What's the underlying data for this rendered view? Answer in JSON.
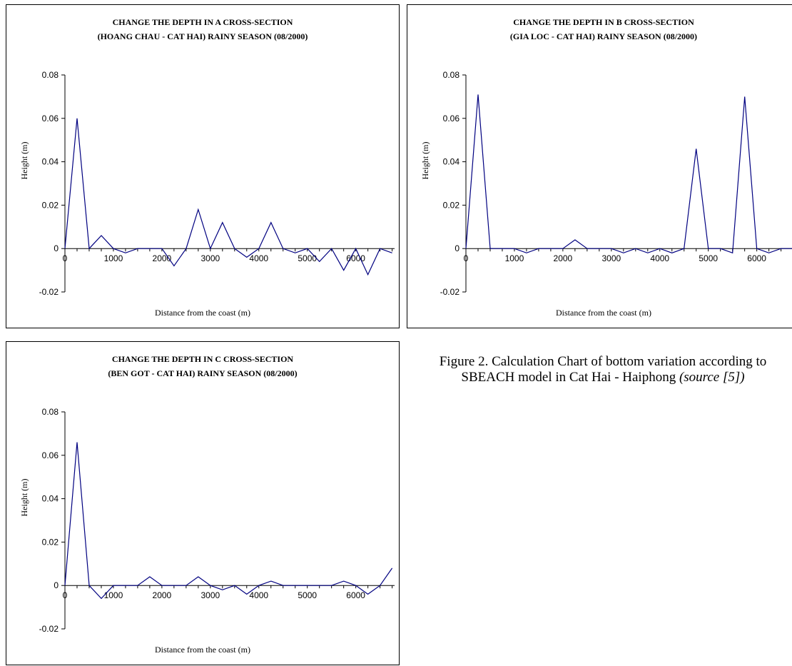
{
  "caption": {
    "text": "Figure 2. Calculation Chart of bottom variation according to SBEACH model in Cat Hai - Haiphong ",
    "source": "(source [5])"
  },
  "chart_data": [
    {
      "id": "a",
      "type": "line",
      "title_line1": "CHANGE THE DEPTH IN A CROSS-SECTION",
      "title_line2": "(HOANG CHAU - CAT HAI) RAINY SEASON (08/2000)",
      "xlabel": "Distance from the coast (m)",
      "ylabel": "Height (m)",
      "ylim": [
        -0.02,
        0.08
      ],
      "yticks": [
        -0.02,
        0,
        0.02,
        0.04,
        0.06,
        0.08
      ],
      "ytick_labels": [
        "-0.02",
        "0",
        "0.02",
        "0.04",
        "0.06",
        "0.08"
      ],
      "xlim": [
        0,
        6800
      ],
      "xticks": [
        0,
        1000,
        2000,
        3000,
        4000,
        5000,
        6000
      ],
      "xtick_labels": [
        "0",
        "1000",
        "2000",
        "3000",
        "4000",
        "5000",
        "6000"
      ],
      "line_color": "#000080",
      "x": [
        0,
        250,
        500,
        750,
        1000,
        1250,
        1500,
        1750,
        2000,
        2250,
        2500,
        2750,
        3000,
        3250,
        3500,
        3750,
        4000,
        4250,
        4500,
        4750,
        5000,
        5250,
        5500,
        5750,
        6000,
        6250,
        6500,
        6750
      ],
      "y": [
        0,
        0.06,
        0,
        0.006,
        0,
        -0.002,
        0,
        0,
        0,
        -0.008,
        0,
        0.018,
        0,
        0.012,
        0,
        -0.004,
        0,
        0.012,
        0,
        -0.002,
        0,
        -0.006,
        0,
        -0.01,
        0,
        -0.012,
        0,
        -0.002
      ]
    },
    {
      "id": "b",
      "type": "line",
      "title_line1": "CHANGE THE DEPTH IN B CROSS-SECTION",
      "title_line2": "(GIA LOC - CAT HAI) RAINY SEASON (08/2000)",
      "xlabel": "Distance from the coast (m)",
      "ylabel": "Height (m)",
      "ylim": [
        -0.02,
        0.08
      ],
      "yticks": [
        -0.02,
        0,
        0.02,
        0.04,
        0.06,
        0.08
      ],
      "ytick_labels": [
        "-0.02",
        "0",
        "0.02",
        "0.04",
        "0.06",
        "0.08"
      ],
      "xlim": [
        0,
        6800
      ],
      "xticks": [
        0,
        1000,
        2000,
        3000,
        4000,
        5000,
        6000
      ],
      "xtick_labels": [
        "0",
        "1000",
        "2000",
        "3000",
        "4000",
        "5000",
        "6000"
      ],
      "line_color": "#000080",
      "x": [
        0,
        250,
        500,
        750,
        1000,
        1250,
        1500,
        1750,
        2000,
        2250,
        2500,
        2750,
        3000,
        3250,
        3500,
        3750,
        4000,
        4250,
        4500,
        4750,
        5000,
        5250,
        5500,
        5750,
        6000,
        6250,
        6500,
        6750
      ],
      "y": [
        0,
        0.071,
        0,
        0,
        0,
        -0.002,
        0,
        0,
        0,
        0.004,
        0,
        0,
        0,
        -0.002,
        0,
        -0.002,
        0,
        -0.002,
        0,
        0.046,
        0,
        0,
        -0.002,
        0.07,
        0,
        -0.002,
        0,
        0
      ]
    },
    {
      "id": "c",
      "type": "line",
      "title_line1": "CHANGE THE DEPTH IN C CROSS-SECTION",
      "title_line2": "(BEN GOT - CAT HAI) RAINY SEASON (08/2000)",
      "xlabel": "Distance from the coast (m)",
      "ylabel": "Height (m)",
      "ylim": [
        -0.02,
        0.08
      ],
      "yticks": [
        -0.02,
        0,
        0.02,
        0.04,
        0.06,
        0.08
      ],
      "ytick_labels": [
        "-0.02",
        "0",
        "0.02",
        "0.04",
        "0.06",
        "0.08"
      ],
      "xlim": [
        0,
        6800
      ],
      "xticks": [
        0,
        1000,
        2000,
        3000,
        4000,
        5000,
        6000
      ],
      "xtick_labels": [
        "0",
        "1000",
        "2000",
        "3000",
        "4000",
        "5000",
        "6000"
      ],
      "line_color": "#000080",
      "x": [
        0,
        250,
        500,
        750,
        1000,
        1250,
        1500,
        1750,
        2000,
        2250,
        2500,
        2750,
        3000,
        3250,
        3500,
        3750,
        4000,
        4250,
        4500,
        4750,
        5000,
        5250,
        5500,
        5750,
        6000,
        6250,
        6500,
        6750
      ],
      "y": [
        0,
        0.066,
        0,
        -0.006,
        0,
        0,
        0,
        0.004,
        0,
        0,
        0,
        0.004,
        0,
        -0.002,
        0,
        -0.004,
        0,
        0.002,
        0,
        0,
        0,
        0,
        0,
        0.002,
        0,
        -0.004,
        0,
        0.008
      ]
    }
  ]
}
